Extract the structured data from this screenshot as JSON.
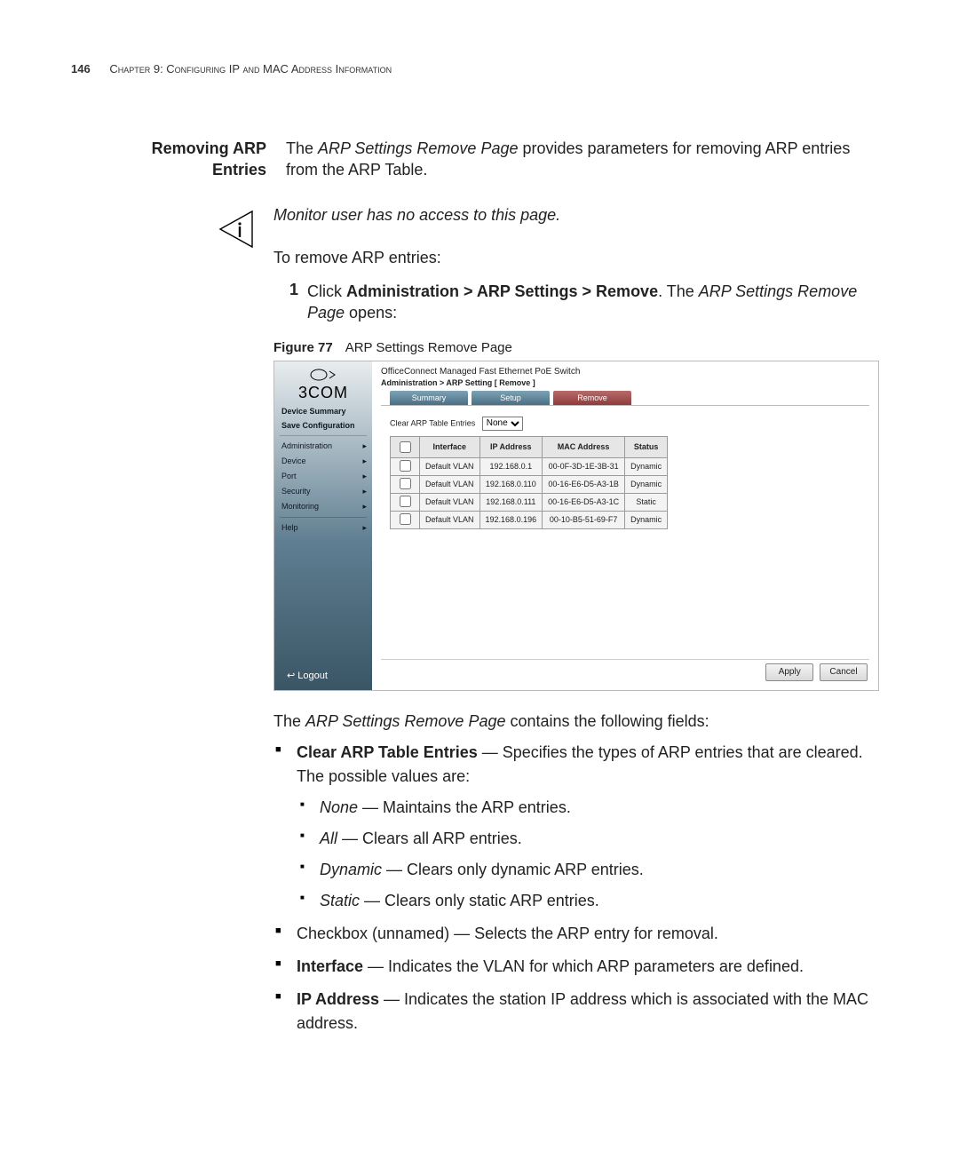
{
  "header": {
    "page_number": "146",
    "chapter_text": "Chapter 9: Configuring IP and MAC Address Information"
  },
  "section": {
    "title_line1": "Removing ARP",
    "title_line2": "Entries",
    "intro_a": "The ",
    "intro_em": "ARP Settings Remove Page",
    "intro_b": " provides parameters for removing ARP entries from the ARP Table."
  },
  "note": "Monitor user has no access to this page.",
  "lead": "To remove ARP entries:",
  "step1": {
    "num": "1",
    "pre": "Click ",
    "path": "Administration > ARP Settings > Remove",
    "post_a": ". The ",
    "post_em": "ARP Settings Remove Page",
    "post_b": " opens:"
  },
  "figure": {
    "label": "Figure 77",
    "caption": "ARP Settings Remove Page"
  },
  "shot": {
    "brand": "3COM",
    "product": "OfficeConnect Managed Fast Ethernet PoE Switch",
    "breadcrumb": "Administration > ARP Setting [ Remove ]",
    "sidebar": {
      "items": [
        {
          "label": "Device Summary",
          "bold": true
        },
        {
          "label": "Save Configuration",
          "bold": true
        },
        {
          "label": "Administration",
          "arrow": true
        },
        {
          "label": "Device",
          "arrow": true
        },
        {
          "label": "Port",
          "arrow": true
        },
        {
          "label": "Security",
          "arrow": true
        },
        {
          "label": "Monitoring",
          "arrow": true
        },
        {
          "label": "Help",
          "arrow": true
        }
      ],
      "logout": "Logout"
    },
    "tabs": [
      "Summary",
      "Setup",
      "Remove"
    ],
    "active_tab": 2,
    "clear_label": "Clear ARP Table Entries",
    "clear_value": "None",
    "columns": [
      "",
      "Interface",
      "IP Address",
      "MAC Address",
      "Status"
    ],
    "rows": [
      [
        "Default VLAN",
        "192.168.0.1",
        "00-0F-3D-1E-3B-31",
        "Dynamic"
      ],
      [
        "Default VLAN",
        "192.168.0.110",
        "00-16-E6-D5-A3-1B",
        "Dynamic"
      ],
      [
        "Default VLAN",
        "192.168.0.111",
        "00-16-E6-D5-A3-1C",
        "Static"
      ],
      [
        "Default VLAN",
        "192.168.0.196",
        "00-10-B5-51-69-F7",
        "Dynamic"
      ]
    ],
    "buttons": {
      "apply": "Apply",
      "cancel": "Cancel"
    }
  },
  "post_fig": {
    "lead_a": "The ",
    "lead_em": "ARP Settings Remove Page",
    "lead_b": " contains the following fields:"
  },
  "fields": {
    "clear": {
      "name": "Clear ARP Table Entries",
      "desc": " — Specifies the types of ARP entries that are cleared. The possible values are:",
      "vals": [
        {
          "n": "None",
          "d": " — Maintains the ARP entries."
        },
        {
          "n": "All",
          "d": " — Clears all ARP entries."
        },
        {
          "n": "Dynamic",
          "d": " — Clears only dynamic ARP entries."
        },
        {
          "n": "Static",
          "d": " — Clears only static ARP entries."
        }
      ]
    },
    "checkbox": "Checkbox (unnamed) — Selects the ARP entry for removal.",
    "interface": {
      "name": "Interface",
      "desc": " — Indicates the VLAN for which ARP parameters are defined."
    },
    "ip": {
      "name": "IP Address",
      "desc": " — Indicates the station IP address which is associated with the MAC address."
    }
  }
}
